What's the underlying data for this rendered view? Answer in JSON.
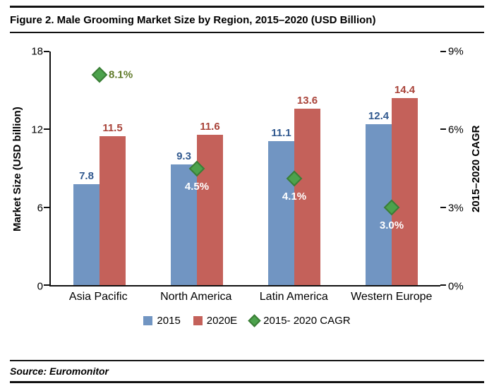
{
  "chart_data": {
    "type": "bar",
    "title": "Figure 2. Male Grooming Market Size by Region, 2015–2020 (USD Billion)",
    "categories": [
      "Asia Pacific",
      "North America",
      "Latin America",
      "Western Europe"
    ],
    "series": [
      {
        "name": "2015",
        "axis": "left",
        "marker": "square",
        "color": "#7195C2",
        "label_color": "#31598F",
        "values": [
          7.8,
          9.3,
          11.1,
          12.4
        ]
      },
      {
        "name": "2020E",
        "axis": "left",
        "marker": "square",
        "color": "#C4615A",
        "label_color": "#A94339",
        "values": [
          11.5,
          11.6,
          13.6,
          14.4
        ]
      },
      {
        "name": "2015- 2020 CAGR",
        "axis": "right",
        "marker": "diamond",
        "color": "#4CA24C",
        "border_color": "#3A7D36",
        "values": [
          8.1,
          4.5,
          4.1,
          3.0
        ],
        "labels": [
          "8.1%",
          "4.5%",
          "4.1%",
          "3.0%"
        ],
        "label_positions": [
          "right",
          "below",
          "below",
          "below"
        ],
        "label_colors": [
          "#5F7A28",
          "#FFFFFF",
          "#FFFFFF",
          "#FFFFFF"
        ]
      }
    ],
    "xlabel": "",
    "ylabel_left": "Market Size (USD billion)",
    "ylabel_right": "2015–2020 CAGR",
    "y_left": {
      "min": 0,
      "max": 18,
      "ticks": [
        {
          "value": 0,
          "label": "0"
        },
        {
          "value": 6,
          "label": "6"
        },
        {
          "value": 12,
          "label": "12"
        },
        {
          "value": 18,
          "label": "18"
        }
      ]
    },
    "y_right": {
      "min": 0,
      "max": 9,
      "ticks": [
        {
          "value": 0,
          "label": "0%"
        },
        {
          "value": 3,
          "label": "3%"
        },
        {
          "value": 6,
          "label": "6%"
        },
        {
          "value": 9,
          "label": "9%"
        }
      ]
    },
    "grid": false,
    "legend_position": "bottom"
  },
  "source_note": "Source: Euromonitor"
}
